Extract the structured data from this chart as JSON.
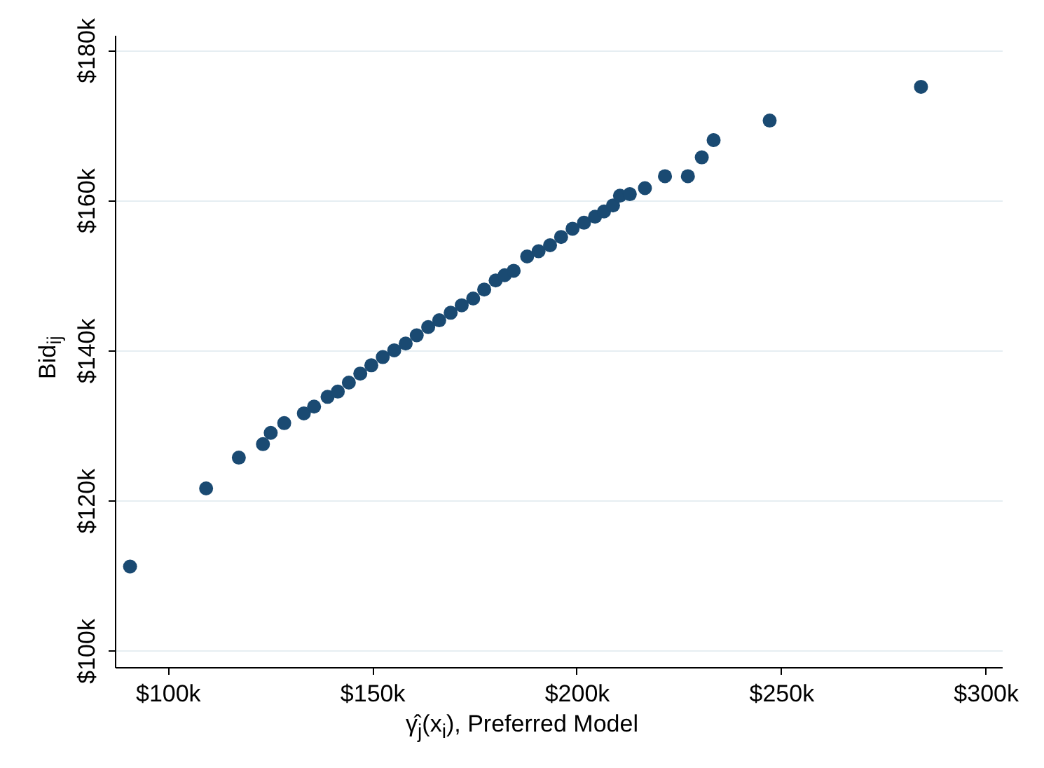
{
  "chart_data": {
    "type": "scatter",
    "xlabel": "γ̂$_{j}$(x$_{i}$), Preferred Model",
    "ylabel": "Bid$_{ij}$",
    "x": [
      90800,
      109400,
      117400,
      123300,
      125200,
      128500,
      133300,
      135800,
      139100,
      141600,
      144300,
      147100,
      149800,
      152600,
      155400,
      158200,
      160900,
      163700,
      166400,
      169200,
      171900,
      174700,
      177400,
      180200,
      182400,
      184600,
      187900,
      190700,
      193500,
      196200,
      199000,
      201800,
      204500,
      206700,
      208900,
      210600,
      213000,
      216700,
      221600,
      227200,
      230600,
      233500,
      247200,
      284200
    ],
    "series": [
      {
        "color": "#1a4a72",
        "values": [
          111200,
          121600,
          125700,
          127500,
          129000,
          130300,
          131600,
          132500,
          133800,
          134500,
          135700,
          136900,
          138000,
          139100,
          140000,
          140900,
          142000,
          143100,
          144000,
          145000,
          146000,
          146900,
          148100,
          149300,
          150000,
          150600,
          152500,
          153200,
          154000,
          155100,
          156200,
          157000,
          157800,
          158500,
          159300,
          160600,
          160800,
          161600,
          163200,
          163200,
          165700,
          168000,
          170600,
          175100
        ]
      }
    ],
    "xlim": [
      87100,
      304000
    ],
    "ylim": [
      97800,
      182000
    ],
    "xticks": [
      {
        "value": 100000,
        "label": "$100k"
      },
      {
        "value": 150000,
        "label": "$150k"
      },
      {
        "value": 200000,
        "label": "$200k"
      },
      {
        "value": 250000,
        "label": "$250k"
      },
      {
        "value": 300000,
        "label": "$300k"
      }
    ],
    "yticks": [
      {
        "value": 100000,
        "label": "$100k"
      },
      {
        "value": 120000,
        "label": "$120k"
      },
      {
        "value": 140000,
        "label": "$140k"
      },
      {
        "value": 160000,
        "label": "$160k"
      },
      {
        "value": 180000,
        "label": "$180k"
      }
    ],
    "grid": "y",
    "marker": "circle"
  }
}
